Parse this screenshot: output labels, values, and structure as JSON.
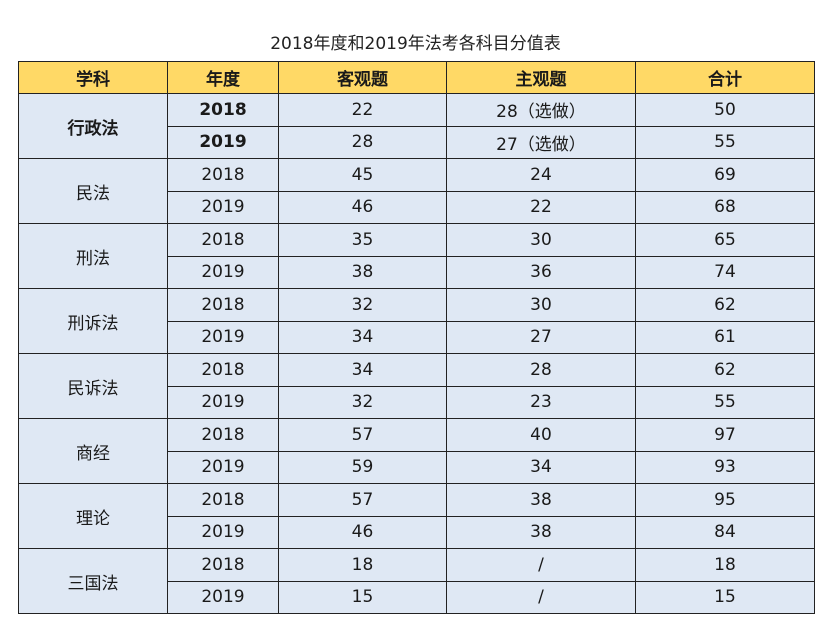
{
  "caption": "2018年度和2019年法考各科目分值表",
  "headers": [
    "学科",
    "年度",
    "客观题",
    "主观题",
    "合计"
  ],
  "subjects": [
    {
      "name": "行政法",
      "bold": true,
      "rows": [
        {
          "year": "2018",
          "objective": "22",
          "subjective": "28（选做）",
          "total": "50"
        },
        {
          "year": "2019",
          "objective": "28",
          "subjective": "27（选做）",
          "total": "55"
        }
      ]
    },
    {
      "name": "民法",
      "bold": false,
      "rows": [
        {
          "year": "2018",
          "objective": "45",
          "subjective": "24",
          "total": "69"
        },
        {
          "year": "2019",
          "objective": "46",
          "subjective": "22",
          "total": "68"
        }
      ]
    },
    {
      "name": "刑法",
      "bold": false,
      "rows": [
        {
          "year": "2018",
          "objective": "35",
          "subjective": "30",
          "total": "65"
        },
        {
          "year": "2019",
          "objective": "38",
          "subjective": "36",
          "total": "74"
        }
      ]
    },
    {
      "name": "刑诉法",
      "bold": false,
      "rows": [
        {
          "year": "2018",
          "objective": "32",
          "subjective": "30",
          "total": "62"
        },
        {
          "year": "2019",
          "objective": "34",
          "subjective": "27",
          "total": "61"
        }
      ]
    },
    {
      "name": "民诉法",
      "bold": false,
      "rows": [
        {
          "year": "2018",
          "objective": "34",
          "subjective": "28",
          "total": "62"
        },
        {
          "year": "2019",
          "objective": "32",
          "subjective": "23",
          "total": "55"
        }
      ]
    },
    {
      "name": "商经",
      "bold": false,
      "rows": [
        {
          "year": "2018",
          "objective": "57",
          "subjective": "40",
          "total": "97"
        },
        {
          "year": "2019",
          "objective": "59",
          "subjective": "34",
          "total": "93"
        }
      ]
    },
    {
      "name": "理论",
      "bold": false,
      "rows": [
        {
          "year": "2018",
          "objective": "57",
          "subjective": "38",
          "total": "95"
        },
        {
          "year": "2019",
          "objective": "46",
          "subjective": "38",
          "total": "84"
        }
      ]
    },
    {
      "name": "三国法",
      "bold": false,
      "rows": [
        {
          "year": "2018",
          "objective": "18",
          "subjective": "/",
          "total": "18"
        },
        {
          "year": "2019",
          "objective": "15",
          "subjective": "/",
          "total": "15"
        }
      ]
    }
  ],
  "colors": {
    "header_bg": "#ffd966",
    "cell_bg": "#dfe8f4",
    "border": "#222222"
  }
}
